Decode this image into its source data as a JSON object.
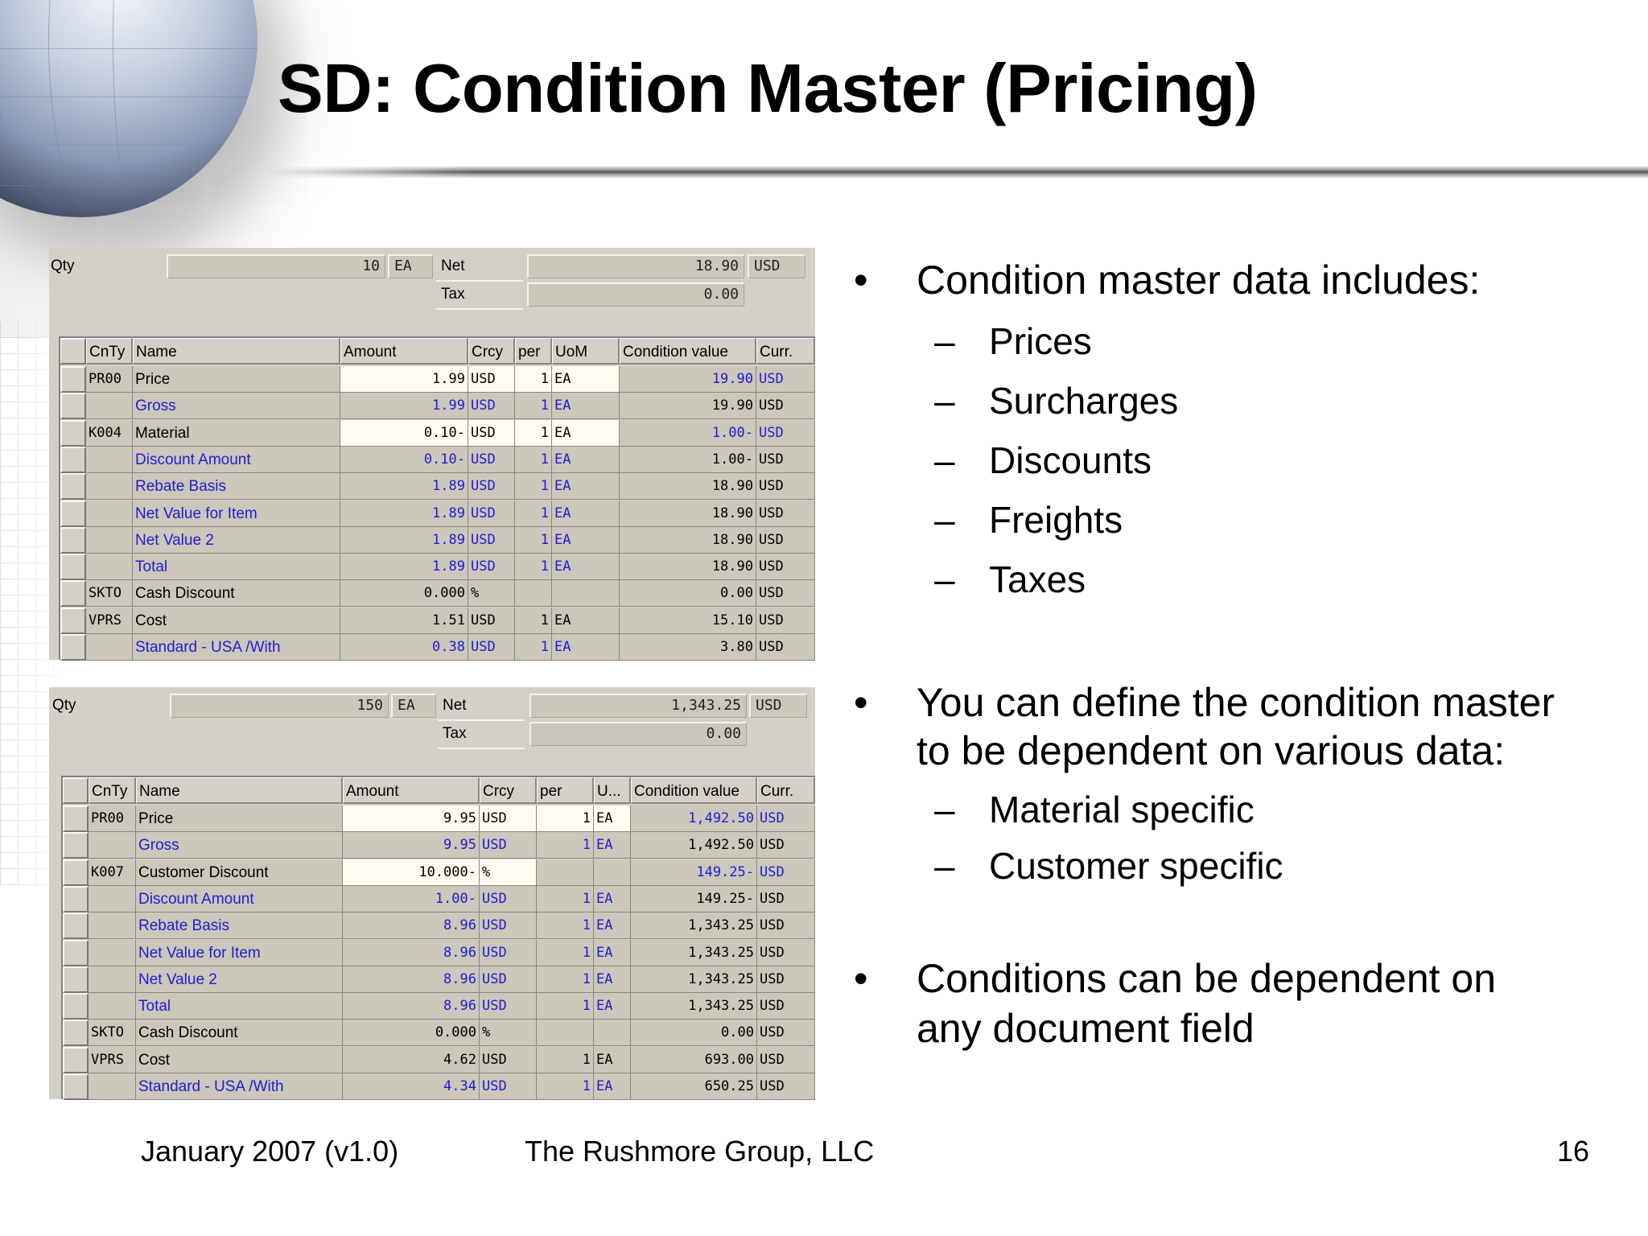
{
  "slide": {
    "title": "SD: Condition Master (Pricing)",
    "footer": {
      "date_version": "January 2007 (v1.0)",
      "company": "The Rushmore Group, LLC",
      "page_number": "16"
    }
  },
  "colors": {
    "sap_panel_bg": "#d4d0c8",
    "sap_input_bg": "#fffbf0",
    "sap_link_blue": "#2020d0"
  },
  "pricing_screens": [
    {
      "qty_label": "Qty",
      "qty_value": "10",
      "qty_uom": "EA",
      "net_label": "Net",
      "net_value": "18.90",
      "net_currency": "USD",
      "tax_label": "Tax",
      "tax_value": "0.00",
      "columns": [
        "CnTy",
        "Name",
        "Amount",
        "Crcy",
        "per",
        "UoM",
        "Condition value",
        "Curr."
      ],
      "rows": [
        {
          "cnty": "PR00",
          "name": "Price",
          "amount": "1.99",
          "crcy": "USD",
          "per": "1",
          "uom": "EA",
          "cond_value": "19.90",
          "curr": "USD"
        },
        {
          "cnty": "",
          "name": "Gross",
          "amount": "1.99",
          "crcy": "USD",
          "per": "1",
          "uom": "EA",
          "cond_value": "19.90",
          "curr": "USD"
        },
        {
          "cnty": "K004",
          "name": "Material",
          "amount": "0.10-",
          "crcy": "USD",
          "per": "1",
          "uom": "EA",
          "cond_value": "1.00-",
          "curr": "USD"
        },
        {
          "cnty": "",
          "name": "Discount Amount",
          "amount": "0.10-",
          "crcy": "USD",
          "per": "1",
          "uom": "EA",
          "cond_value": "1.00-",
          "curr": "USD"
        },
        {
          "cnty": "",
          "name": "Rebate Basis",
          "amount": "1.89",
          "crcy": "USD",
          "per": "1",
          "uom": "EA",
          "cond_value": "18.90",
          "curr": "USD"
        },
        {
          "cnty": "",
          "name": "Net Value for Item",
          "amount": "1.89",
          "crcy": "USD",
          "per": "1",
          "uom": "EA",
          "cond_value": "18.90",
          "curr": "USD"
        },
        {
          "cnty": "",
          "name": "Net Value 2",
          "amount": "1.89",
          "crcy": "USD",
          "per": "1",
          "uom": "EA",
          "cond_value": "18.90",
          "curr": "USD"
        },
        {
          "cnty": "",
          "name": "Total",
          "amount": "1.89",
          "crcy": "USD",
          "per": "1",
          "uom": "EA",
          "cond_value": "18.90",
          "curr": "USD"
        },
        {
          "cnty": "SKTO",
          "name": "Cash Discount",
          "amount": "0.000",
          "crcy": "%",
          "per": "",
          "uom": "",
          "cond_value": "0.00",
          "curr": "USD"
        },
        {
          "cnty": "VPRS",
          "name": "Cost",
          "amount": "1.51",
          "crcy": "USD",
          "per": "1",
          "uom": "EA",
          "cond_value": "15.10",
          "curr": "USD"
        },
        {
          "cnty": "",
          "name": "Standard - USA /With",
          "amount": "0.38",
          "crcy": "USD",
          "per": "1",
          "uom": "EA",
          "cond_value": "3.80",
          "curr": "USD"
        }
      ]
    },
    {
      "qty_label": "Qty",
      "qty_value": "150",
      "qty_uom": "EA",
      "net_label": "Net",
      "net_value": "1,343.25",
      "net_currency": "USD",
      "tax_label": "Tax",
      "tax_value": "0.00",
      "columns": [
        "CnTy",
        "Name",
        "Amount",
        "Crcy",
        "per",
        "U...",
        "Condition value",
        "Curr."
      ],
      "rows": [
        {
          "cnty": "PR00",
          "name": "Price",
          "amount": "9.95",
          "crcy": "USD",
          "per": "1",
          "uom": "EA",
          "cond_value": "1,492.50",
          "curr": "USD"
        },
        {
          "cnty": "",
          "name": "Gross",
          "amount": "9.95",
          "crcy": "USD",
          "per": "1",
          "uom": "EA",
          "cond_value": "1,492.50",
          "curr": "USD"
        },
        {
          "cnty": "K007",
          "name": "Customer Discount",
          "amount": "10.000-",
          "crcy": "%",
          "per": "",
          "uom": "",
          "cond_value": "149.25-",
          "curr": "USD"
        },
        {
          "cnty": "",
          "name": "Discount Amount",
          "amount": "1.00-",
          "crcy": "USD",
          "per": "1",
          "uom": "EA",
          "cond_value": "149.25-",
          "curr": "USD"
        },
        {
          "cnty": "",
          "name": "Rebate Basis",
          "amount": "8.96",
          "crcy": "USD",
          "per": "1",
          "uom": "EA",
          "cond_value": "1,343.25",
          "curr": "USD"
        },
        {
          "cnty": "",
          "name": "Net Value for Item",
          "amount": "8.96",
          "crcy": "USD",
          "per": "1",
          "uom": "EA",
          "cond_value": "1,343.25",
          "curr": "USD"
        },
        {
          "cnty": "",
          "name": "Net Value 2",
          "amount": "8.96",
          "crcy": "USD",
          "per": "1",
          "uom": "EA",
          "cond_value": "1,343.25",
          "curr": "USD"
        },
        {
          "cnty": "",
          "name": "Total",
          "amount": "8.96",
          "crcy": "USD",
          "per": "1",
          "uom": "EA",
          "cond_value": "1,343.25",
          "curr": "USD"
        },
        {
          "cnty": "SKTO",
          "name": "Cash Discount",
          "amount": "0.000",
          "crcy": "%",
          "per": "",
          "uom": "",
          "cond_value": "0.00",
          "curr": "USD"
        },
        {
          "cnty": "VPRS",
          "name": "Cost",
          "amount": "4.62",
          "crcy": "USD",
          "per": "1",
          "uom": "EA",
          "cond_value": "693.00",
          "curr": "USD"
        },
        {
          "cnty": "",
          "name": "Standard - USA /With",
          "amount": "4.34",
          "crcy": "USD",
          "per": "1",
          "uom": "EA",
          "cond_value": "650.25",
          "curr": "USD"
        }
      ]
    }
  ],
  "bullets": [
    {
      "bullet_glyph": "•",
      "text": "Condition master data includes:",
      "sub": [
        {
          "dash": "–",
          "text": "Prices"
        },
        {
          "dash": "–",
          "text": "Surcharges"
        },
        {
          "dash": "–",
          "text": "Discounts"
        },
        {
          "dash": "–",
          "text": "Freights"
        },
        {
          "dash": "–",
          "text": "Taxes"
        }
      ]
    },
    {
      "bullet_glyph": "•",
      "text_line1": "You can define the condition master",
      "text_line2": "to be dependent on various data:",
      "sub": [
        {
          "dash": "–",
          "text": "Material specific"
        },
        {
          "dash": "–",
          "text": "Customer specific"
        }
      ]
    },
    {
      "bullet_glyph": "•",
      "text_line1": "Conditions can be dependent on",
      "text_line2": "any document field"
    }
  ]
}
